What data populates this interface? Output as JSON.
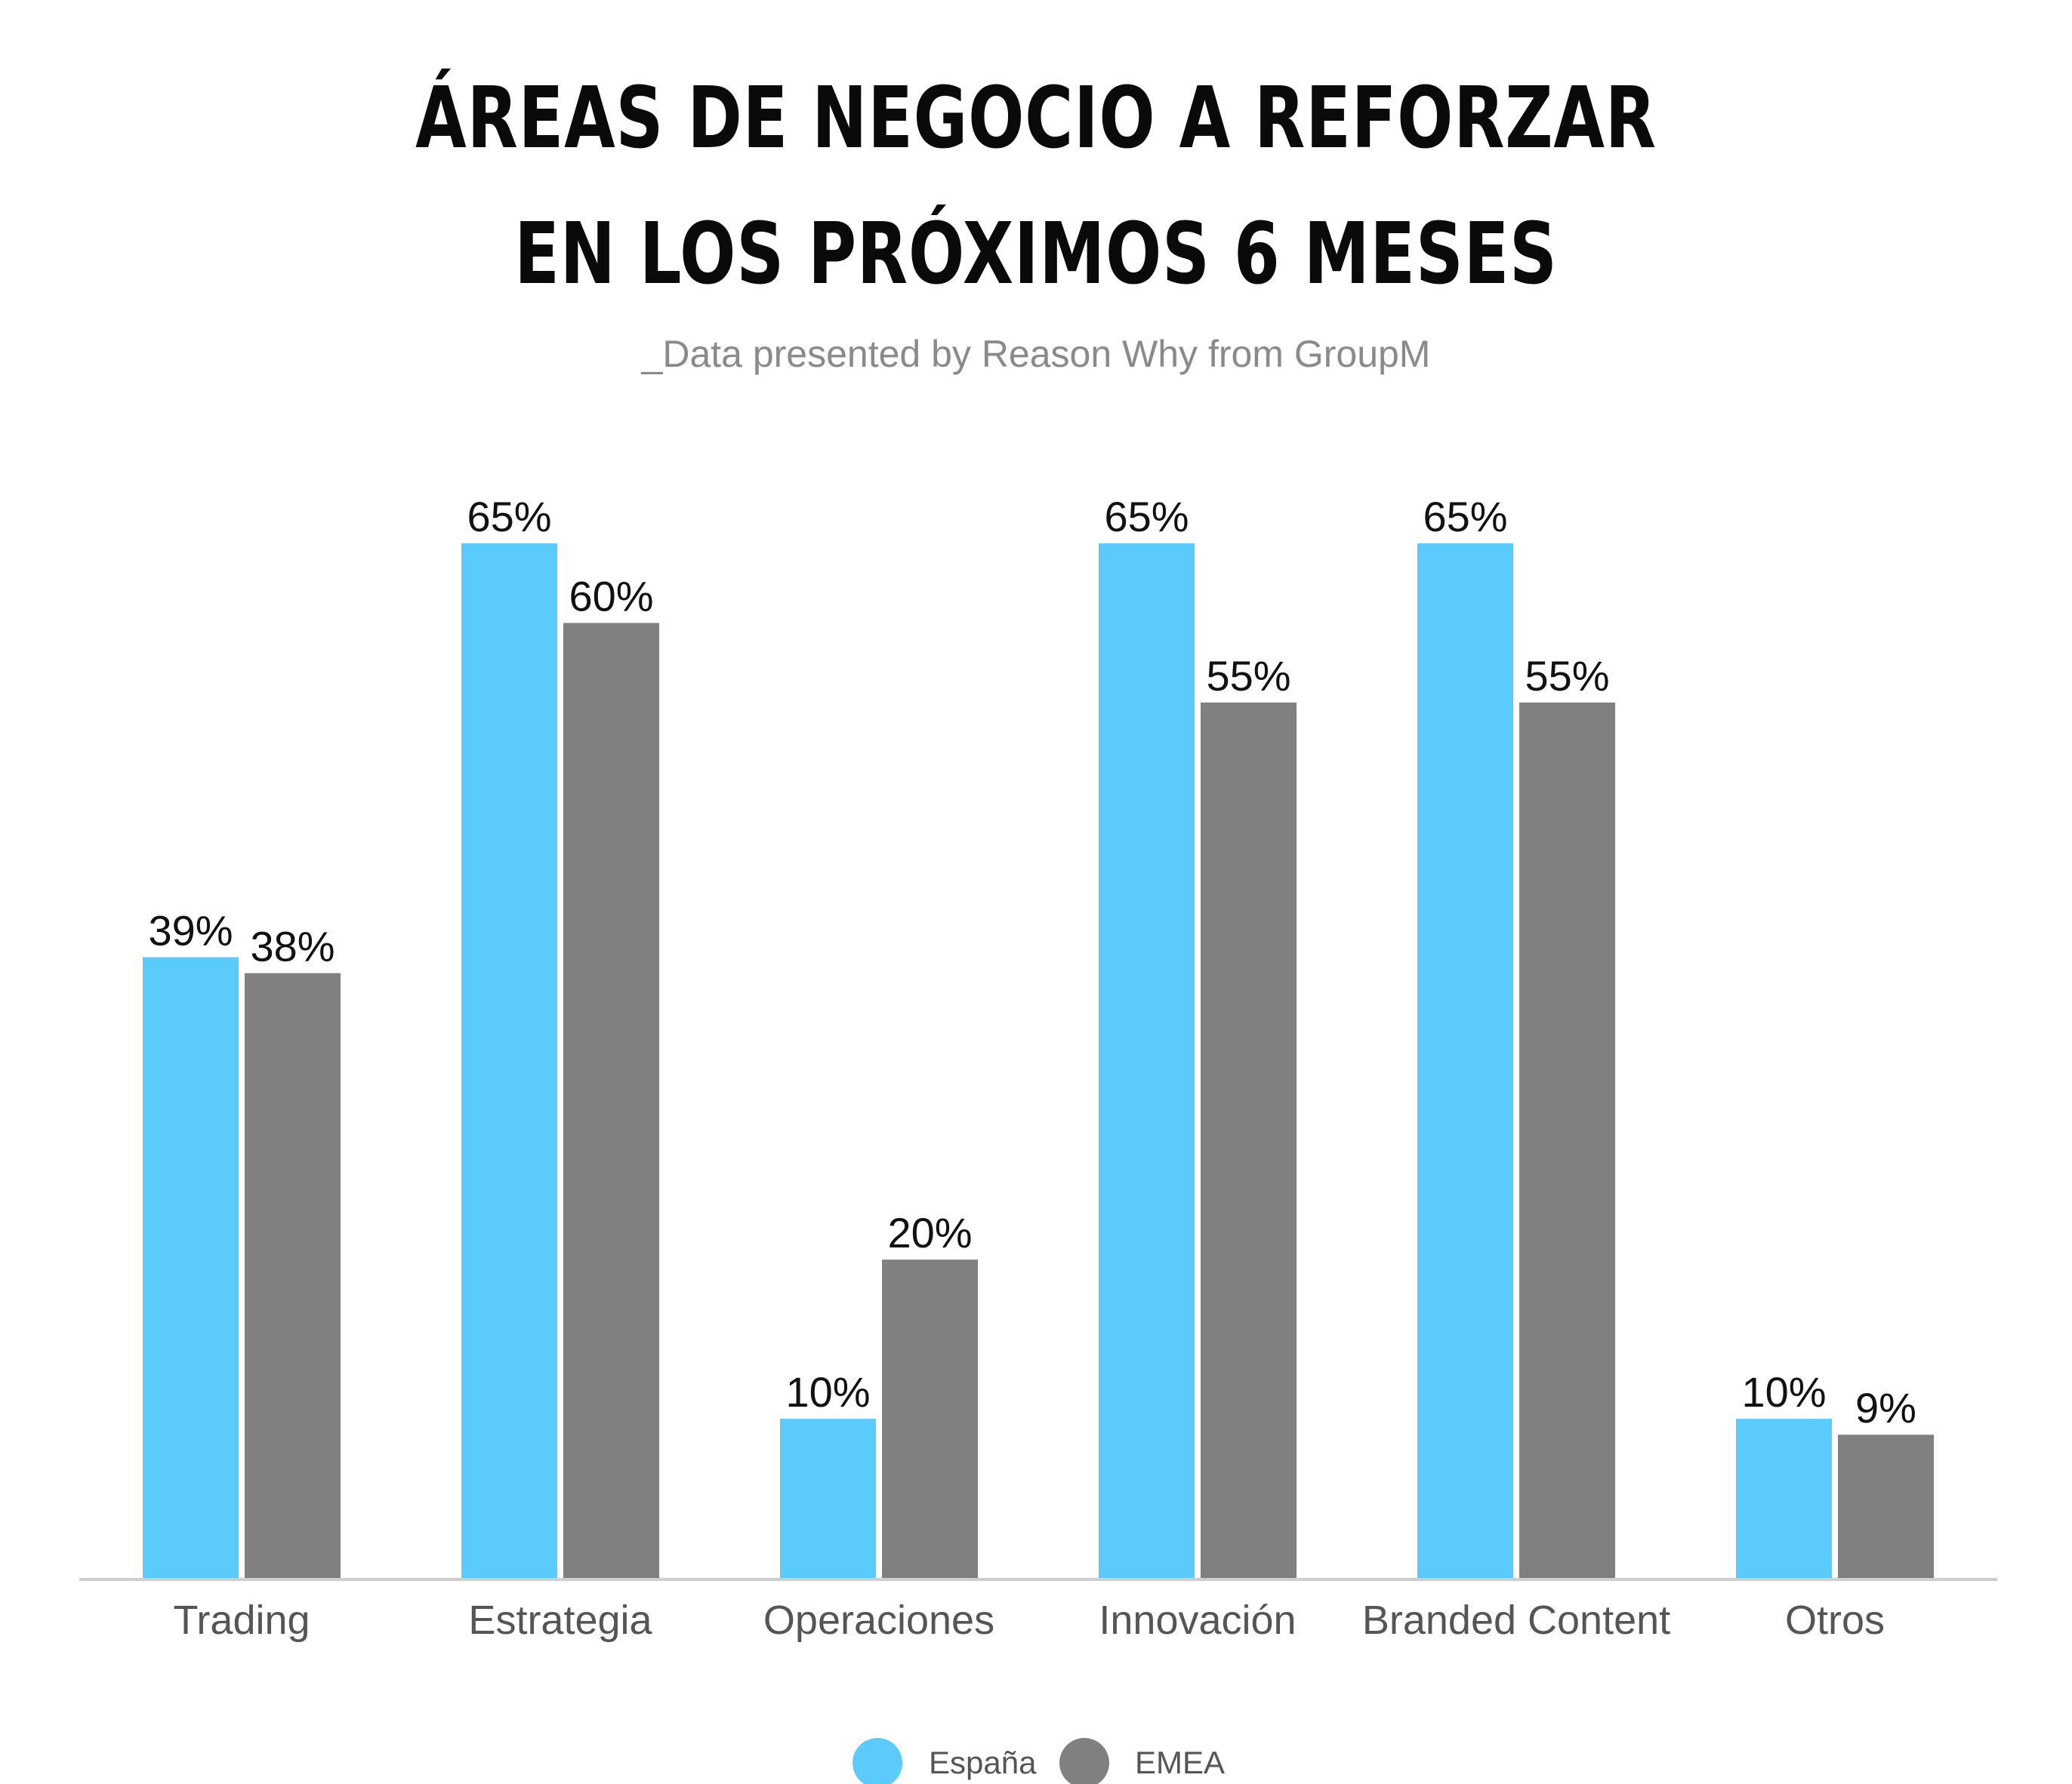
{
  "title_lines": [
    "ÁREAS DE NEGOCIO A REFORZAR",
    "EN LOS PRÓXIMOS 6 MESES"
  ],
  "subtitle": "_Data presented by Reason Why from GroupM",
  "colors": {
    "espana": "#5bcbfb",
    "emea": "#808080",
    "axis": "#cfcfcf",
    "text": "#111111",
    "category_text": "#555555"
  },
  "chart_data": {
    "type": "bar",
    "categories": [
      "Trading",
      "Estrategia",
      "Operaciones",
      "Innovación",
      "Branded Content",
      "Otros"
    ],
    "series": [
      {
        "name": "España",
        "values": [
          39,
          65,
          10,
          65,
          65,
          10
        ],
        "labels": [
          "39%",
          "65%",
          "10%",
          "65%",
          "65%",
          "10%"
        ]
      },
      {
        "name": "EMEA",
        "values": [
          38,
          60,
          20,
          55,
          55,
          9
        ],
        "labels": [
          "38%",
          "60%",
          "20%",
          "55%",
          "55%",
          "9%"
        ]
      }
    ],
    "ylim": [
      0,
      65
    ],
    "grid": false,
    "legend_position": "bottom-center"
  }
}
